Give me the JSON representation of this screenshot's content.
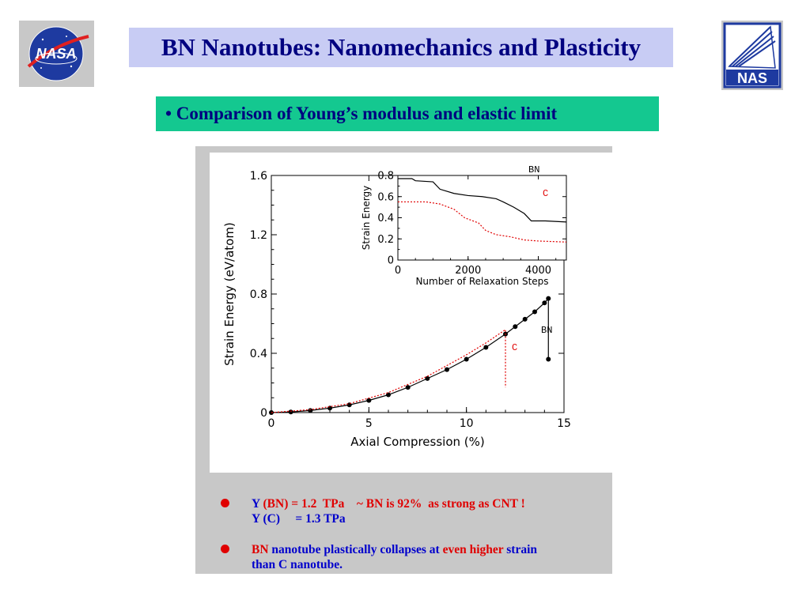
{
  "header": {
    "title": "BN Nanotubes: Nanomechanics and Plasticity",
    "subtitle": "• Comparison of Young’s modulus and elastic limit"
  },
  "logos": {
    "nasa": "NASA",
    "nas": "NAS"
  },
  "colors": {
    "title_bg": "#c8ccf4",
    "title_text": "#000080",
    "subtitle_bg": "#14c890",
    "note_blue": "#0000cc",
    "note_red": "#e00000"
  },
  "chart_data": [
    {
      "type": "line",
      "xlabel": "Axial Compression (%)",
      "ylabel": "Strain Energy (eV/atom)",
      "xlim": [
        0,
        15
      ],
      "ylim": [
        0,
        1.6
      ],
      "xticks": [
        "0",
        "5",
        "10",
        "15"
      ],
      "yticks": [
        "0",
        "0.4",
        "0.8",
        "1.2",
        "1.6"
      ],
      "series": [
        {
          "name": "BN",
          "color": "#000000",
          "markers": true,
          "x": [
            0,
            1,
            2,
            3,
            4,
            5,
            6,
            7,
            8,
            9,
            10,
            11,
            12,
            12.5,
            13,
            13.5,
            14,
            14.2,
            14.2
          ],
          "y": [
            0,
            0.004,
            0.014,
            0.03,
            0.052,
            0.082,
            0.12,
            0.17,
            0.23,
            0.29,
            0.36,
            0.44,
            0.53,
            0.58,
            0.63,
            0.68,
            0.74,
            0.77,
            0.36
          ]
        },
        {
          "name": "C",
          "color": "#e00000",
          "dashed": true,
          "x": [
            0,
            2,
            4,
            6,
            8,
            10,
            11,
            12,
            12,
            12
          ],
          "y": [
            0,
            0.02,
            0.06,
            0.135,
            0.245,
            0.39,
            0.47,
            0.56,
            0.39,
            0.17
          ]
        }
      ]
    },
    {
      "type": "line",
      "xlabel": "Number of Relaxation Steps",
      "ylabel": "Strain Energy",
      "xlim": [
        0,
        4800
      ],
      "ylim": [
        0,
        0.8
      ],
      "xticks": [
        "0",
        "2000",
        "4000"
      ],
      "yticks": [
        "0",
        "0.2",
        "0.4",
        "0.6",
        "0.8"
      ],
      "series": [
        {
          "name": "BN",
          "color": "#000000",
          "x": [
            0,
            400,
            500,
            1000,
            1200,
            1600,
            2000,
            2400,
            2800,
            3000,
            3300,
            3600,
            3800,
            4200,
            4800
          ],
          "y": [
            0.77,
            0.77,
            0.75,
            0.74,
            0.67,
            0.63,
            0.61,
            0.6,
            0.58,
            0.55,
            0.5,
            0.44,
            0.37,
            0.37,
            0.36
          ]
        },
        {
          "name": "C",
          "color": "#e00000",
          "dashed": true,
          "x": [
            0,
            800,
            1200,
            1600,
            1900,
            2300,
            2500,
            2800,
            3200,
            3600,
            4000,
            4800
          ],
          "y": [
            0.55,
            0.55,
            0.53,
            0.48,
            0.4,
            0.35,
            0.28,
            0.24,
            0.22,
            0.19,
            0.18,
            0.17
          ]
        }
      ]
    }
  ],
  "notes": {
    "line1_y": "Y",
    "line1_bn": "(BN)",
    "line1_val": "= 1.2  TPa    ~ BN is 92%  as strong as CNT !",
    "line2": "Y (C)     = 1.3 TPa",
    "line3_bn": "BN",
    "line3_mid": " nanotube plastically collapses at ",
    "line3_hi": "even higher",
    "line3_end": " strain",
    "line4": "than C nanotube."
  }
}
